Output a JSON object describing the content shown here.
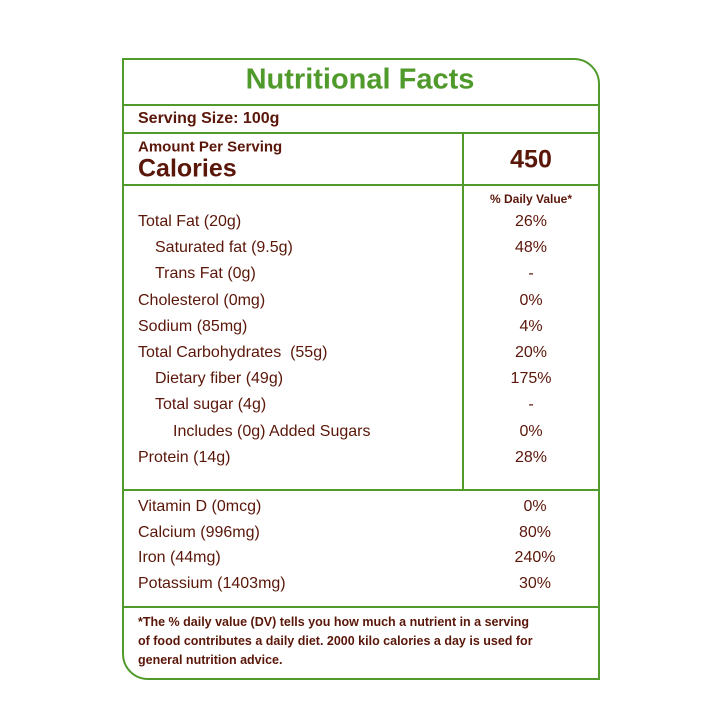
{
  "title": "Nutritional Facts",
  "serving_size": "Serving Size: 100g",
  "amount_per_serving": "Amount Per Serving",
  "calories_label": "Calories",
  "calories_value": "450",
  "dv_header": "% Daily Value*",
  "nutrients": [
    {
      "name": "Total Fat (20g)",
      "dv": "26%"
    },
    {
      "name": "Saturated fat (9.5g)",
      "dv": "48%"
    },
    {
      "name": "Trans Fat (0g)",
      "dv": "-"
    },
    {
      "name": "Cholesterol (0mg)",
      "dv": "0%"
    },
    {
      "name": "Sodium (85mg)",
      "dv": "4%"
    },
    {
      "name": "Total Carbohydrates  (55g)",
      "dv": "20%"
    },
    {
      "name": "Dietary fiber (49g)",
      "dv": "175%"
    },
    {
      "name": "Total sugar (4g)",
      "dv": "-"
    },
    {
      "name": "Includes (0g) Added Sugars",
      "dv": "0%"
    },
    {
      "name": "Protein (14g)",
      "dv": "28%"
    }
  ],
  "vitamins": [
    {
      "name": "Vitamin D (0mcg)",
      "dv": "0%"
    },
    {
      "name": "Calcium (996mg)",
      "dv": "80%"
    },
    {
      "name": "Iron (44mg)",
      "dv": "240%"
    },
    {
      "name": "Potassium (1403mg)",
      "dv": "30%"
    }
  ],
  "footnote": [
    "*The % daily value (DV) tells you how much a nutrient in a serving",
    "of food contributes a daily diet. 2000 kilo calories a day is used for",
    "general nutrition advice."
  ]
}
